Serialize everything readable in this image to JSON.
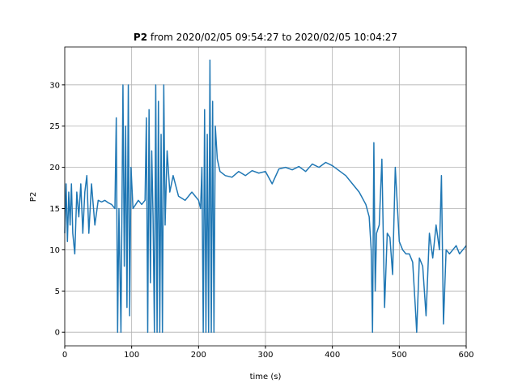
{
  "chart_data": {
    "type": "line",
    "title": {
      "bold": "P2",
      "text": "from 2020/02/05 09:54:27 to 2020/02/05 10:04:27"
    },
    "xlabel": "time (s)",
    "ylabel": "P2",
    "x": [
      0,
      2,
      4,
      6,
      8,
      10,
      12,
      15,
      18,
      21,
      24,
      27,
      30,
      33,
      36,
      40,
      45,
      50,
      55,
      60,
      65,
      70,
      75,
      77,
      79,
      81,
      84,
      87,
      89,
      91,
      93,
      95,
      97,
      99,
      102,
      106,
      110,
      115,
      120,
      122,
      124,
      126,
      128,
      130,
      132,
      134,
      136,
      138,
      140,
      142,
      144,
      146,
      148,
      150,
      153,
      157,
      162,
      170,
      180,
      190,
      200,
      203,
      205,
      207,
      209,
      211,
      213,
      215,
      217,
      219,
      221,
      223,
      225,
      228,
      232,
      240,
      250,
      260,
      270,
      280,
      290,
      300,
      310,
      320,
      330,
      340,
      350,
      360,
      370,
      380,
      390,
      400,
      410,
      420,
      430,
      440,
      450,
      455,
      458,
      460,
      462,
      464,
      466,
      470,
      474,
      478,
      482,
      486,
      490,
      494,
      500,
      505,
      510,
      515,
      520,
      524,
      526,
      530,
      535,
      540,
      545,
      550,
      555,
      560,
      563,
      566,
      570,
      575,
      580,
      585,
      590,
      595,
      600
    ],
    "series": [
      {
        "name": "P2",
        "color": "#1f77b4",
        "values": [
          12,
          18,
          11,
          17,
          13,
          18,
          12,
          9.5,
          17,
          14,
          18,
          12,
          17,
          19,
          12,
          18,
          13,
          16,
          15.8,
          16,
          15.7,
          15.5,
          15,
          26,
          0,
          15,
          0,
          30,
          8,
          25,
          3,
          30,
          2,
          20,
          15,
          15.5,
          16,
          15.5,
          16,
          26,
          0,
          27,
          6,
          22,
          14,
          0,
          30,
          0,
          28,
          0,
          24,
          0,
          30,
          13,
          22,
          17,
          19,
          16.5,
          16,
          17,
          16,
          15,
          20,
          0,
          27,
          0,
          24,
          0,
          33,
          0,
          28,
          0,
          25,
          21,
          19.5,
          19,
          18.8,
          19.5,
          19,
          19.6,
          19.3,
          19.5,
          18,
          19.8,
          20,
          19.7,
          20.1,
          19.5,
          20.4,
          20,
          20.6,
          20.2,
          19.6,
          19,
          18,
          17,
          15.5,
          14,
          10,
          0,
          23,
          5,
          12,
          13,
          21,
          3,
          12,
          11.5,
          7,
          20,
          11,
          10,
          9.5,
          9.5,
          8.5,
          3,
          0,
          9,
          8,
          2,
          12,
          9,
          13,
          10,
          19,
          1,
          10,
          9.5,
          10,
          10.5,
          9.5,
          10,
          10.5
        ]
      }
    ],
    "xlim": [
      0,
      600
    ],
    "ylim": [
      -1.65,
      34.6
    ],
    "xticks": [
      0,
      100,
      200,
      300,
      400,
      500,
      600
    ],
    "yticks": [
      0,
      5,
      10,
      15,
      20,
      25,
      30
    ],
    "grid": true
  }
}
